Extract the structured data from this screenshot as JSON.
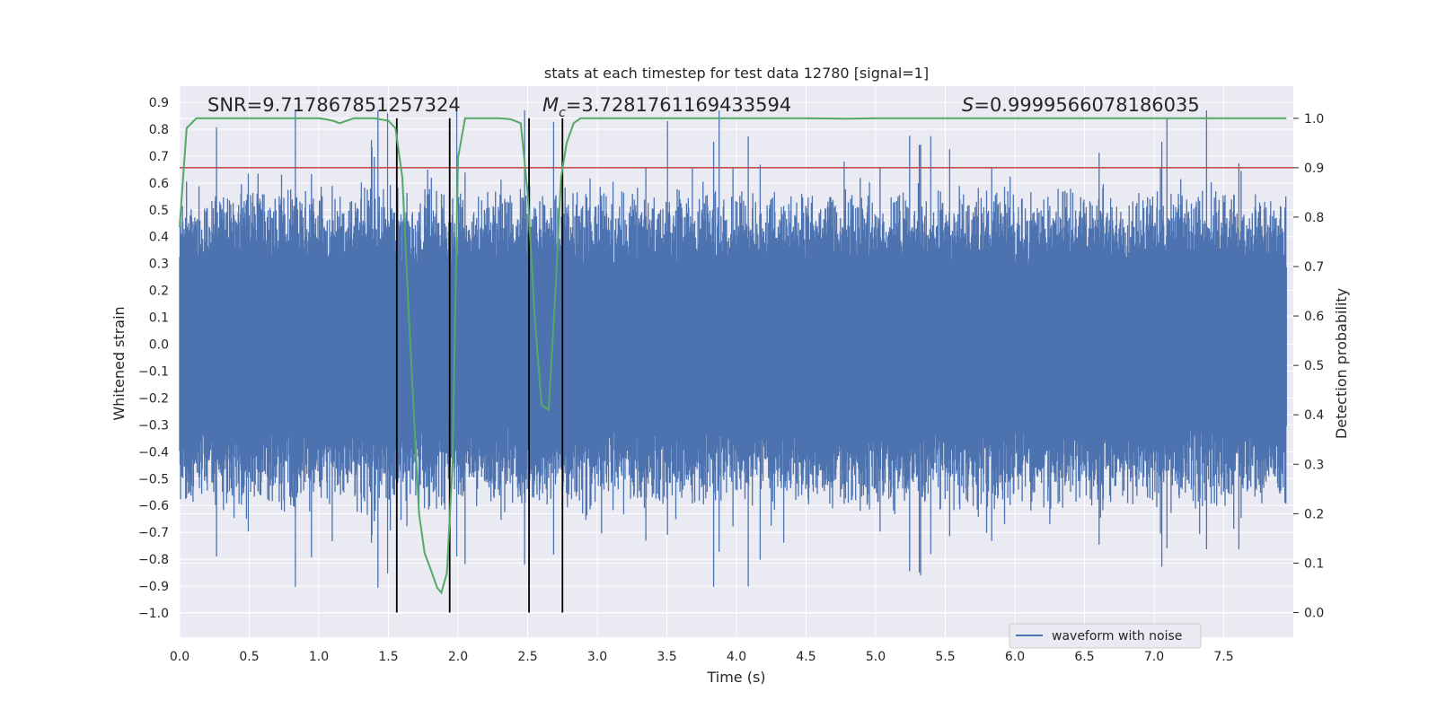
{
  "chart_data": {
    "type": "line",
    "title": "stats at each timestep for test data 12780 [signal=1]",
    "xlabel": "Time (s)",
    "ylabel_left": "Whitened strain",
    "ylabel_right": "Detection probability",
    "xlim": [
      0.0,
      8.0
    ],
    "ylim_left": [
      -1.09,
      0.96
    ],
    "ylim_right": [
      -0.05,
      1.065
    ],
    "grid": true,
    "legend": {
      "position": "lower-right",
      "entries": [
        "waveform with noise"
      ]
    },
    "x_ticks": [
      "0.0",
      "0.5",
      "1.0",
      "1.5",
      "2.0",
      "2.5",
      "3.0",
      "3.5",
      "4.0",
      "4.5",
      "5.0",
      "5.5",
      "6.0",
      "6.5",
      "7.0",
      "7.5"
    ],
    "y_left_ticks": [
      "−1.0",
      "−0.9",
      "−0.8",
      "−0.7",
      "−0.6",
      "−0.5",
      "−0.4",
      "−0.3",
      "−0.2",
      "−0.1",
      "0.0",
      "0.1",
      "0.2",
      "0.3",
      "0.4",
      "0.5",
      "0.6",
      "0.7",
      "0.8",
      "0.9"
    ],
    "y_right_ticks": [
      "0.0",
      "0.1",
      "0.2",
      "0.3",
      "0.4",
      "0.5",
      "0.6",
      "0.7",
      "0.8",
      "0.9",
      "1.0"
    ],
    "annotations": {
      "snr": "SNR=9.717867851257324",
      "mc_symbol": "M",
      "mc_sub": "c",
      "mc_value": "=3.7281761169433594",
      "s_symbol": "S",
      "s_value": "=0.9999566078186035"
    },
    "threshold": {
      "value": 0.9,
      "color": "#c44e52"
    },
    "vertical_markers": [
      1.56,
      1.94,
      2.51,
      2.75
    ],
    "series": [
      {
        "name": "waveform with noise",
        "axis": "left",
        "color": "#4c72b0",
        "description": "whitened strain time series, spanning roughly -1.0 to 0.87 with a dense core between about -0.35 and 0.35"
      },
      {
        "name": "detection probability",
        "axis": "right",
        "color": "#55a868",
        "x": [
          0.0,
          0.05,
          0.12,
          0.2,
          0.3,
          0.45,
          0.6,
          0.8,
          1.0,
          1.05,
          1.1,
          1.15,
          1.25,
          1.4,
          1.5,
          1.55,
          1.6,
          1.65,
          1.72,
          1.76,
          1.8,
          1.85,
          1.88,
          1.92,
          1.96,
          2.0,
          2.05,
          2.1,
          2.2,
          2.3,
          2.38,
          2.45,
          2.5,
          2.55,
          2.6,
          2.65,
          2.7,
          2.74,
          2.78,
          2.83,
          2.88,
          2.95,
          3.1,
          3.5,
          4.0,
          4.5,
          4.8,
          5.0,
          5.5,
          6.0,
          6.5,
          7.0,
          7.5,
          7.95
        ],
        "y": [
          0.78,
          0.98,
          1.0,
          1.0,
          1.0,
          1.0,
          1.0,
          1.0,
          1.0,
          0.998,
          0.995,
          0.99,
          1.0,
          1.0,
          0.995,
          0.98,
          0.88,
          0.58,
          0.2,
          0.12,
          0.09,
          0.05,
          0.04,
          0.08,
          0.3,
          0.92,
          1.0,
          1.0,
          1.0,
          1.0,
          0.998,
          0.99,
          0.85,
          0.6,
          0.42,
          0.41,
          0.65,
          0.88,
          0.95,
          0.99,
          1.0,
          1.0,
          1.0,
          1.0,
          1.0,
          1.0,
          0.999,
          1.0,
          1.0,
          1.0,
          1.0,
          1.0,
          1.0,
          1.0
        ]
      }
    ]
  }
}
